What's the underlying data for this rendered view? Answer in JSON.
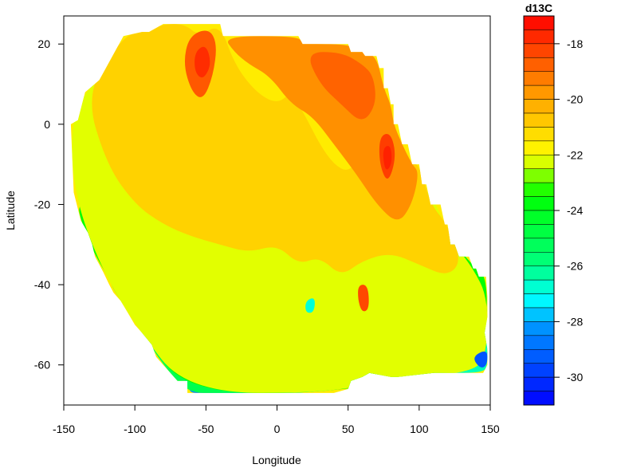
{
  "chart_data": {
    "type": "heatmap",
    "title": "",
    "xlabel": "Longitude",
    "ylabel": "Latitude",
    "xlim": [
      -150,
      150
    ],
    "ylim": [
      -70,
      27
    ],
    "x_ticks": [
      -150,
      -100,
      -50,
      0,
      50,
      100,
      150
    ],
    "y_ticks": [
      20,
      0,
      -20,
      -40,
      -60
    ],
    "grid": false,
    "colorbar": {
      "title": "d13C",
      "range": [
        -31,
        -17
      ],
      "ticks": [
        -18,
        -20,
        -22,
        -24,
        -26,
        -28,
        -30
      ],
      "low_color": "#0000ff",
      "high_color": "#ff0000"
    },
    "field_outline": [
      [
        -65,
        25
      ],
      [
        -40,
        25
      ],
      [
        -38,
        22
      ],
      [
        15,
        22
      ],
      [
        18,
        20
      ],
      [
        50,
        20
      ],
      [
        52,
        18
      ],
      [
        60,
        18
      ],
      [
        62,
        17
      ],
      [
        70,
        17
      ],
      [
        72,
        14
      ],
      [
        75,
        14
      ],
      [
        75,
        9
      ],
      [
        78,
        9
      ],
      [
        80,
        5
      ],
      [
        82,
        5
      ],
      [
        82,
        0
      ],
      [
        85,
        0
      ],
      [
        88,
        -5
      ],
      [
        92,
        -5
      ],
      [
        95,
        -10
      ],
      [
        100,
        -10
      ],
      [
        102,
        -15
      ],
      [
        105,
        -15
      ],
      [
        108,
        -20
      ],
      [
        115,
        -20
      ],
      [
        118,
        -25
      ],
      [
        120,
        -25
      ],
      [
        122,
        -30
      ],
      [
        125,
        -30
      ],
      [
        128,
        -33
      ],
      [
        135,
        -33
      ],
      [
        138,
        -36
      ],
      [
        140,
        -36
      ],
      [
        142,
        -38
      ],
      [
        147,
        -38
      ],
      [
        148,
        -43
      ],
      [
        148,
        -48
      ],
      [
        146,
        -52
      ],
      [
        148,
        -56
      ],
      [
        148,
        -60
      ],
      [
        145,
        -62
      ],
      [
        140,
        -62
      ],
      [
        110,
        -62
      ],
      [
        85,
        -63
      ],
      [
        80,
        -63
      ],
      [
        65,
        -62
      ],
      [
        60,
        -63
      ],
      [
        52,
        -64
      ],
      [
        50,
        -66
      ],
      [
        40,
        -67
      ],
      [
        15,
        -67
      ],
      [
        -15,
        -67
      ],
      [
        -40,
        -67
      ],
      [
        -63,
        -67
      ],
      [
        -63,
        -64
      ],
      [
        -70,
        -64
      ],
      [
        -75,
        -62
      ],
      [
        -80,
        -60
      ],
      [
        -85,
        -58
      ],
      [
        -88,
        -55
      ],
      [
        -95,
        -52
      ],
      [
        -100,
        -50
      ],
      [
        -105,
        -47
      ],
      [
        -110,
        -44
      ],
      [
        -115,
        -42
      ],
      [
        -118,
        -40
      ],
      [
        -122,
        -37
      ],
      [
        -125,
        -35
      ],
      [
        -128,
        -33
      ],
      [
        -130,
        -30
      ],
      [
        -133,
        -27
      ],
      [
        -138,
        -24
      ],
      [
        -143,
        -17
      ],
      [
        -145,
        0
      ],
      [
        -140,
        1
      ],
      [
        -135,
        8
      ],
      [
        -125,
        11
      ],
      [
        -108,
        22
      ],
      [
        -95,
        23
      ],
      [
        -90,
        23
      ],
      [
        -80,
        25
      ],
      [
        -65,
        25
      ]
    ],
    "bands": [
      {
        "level": -30.5,
        "points": [
          [
            -45,
            -64
          ],
          [
            -35,
            -63
          ],
          [
            0,
            -60
          ],
          [
            20,
            -62
          ],
          [
            45,
            -64
          ],
          [
            55,
            -66
          ],
          [
            -15,
            -67
          ],
          [
            -48,
            -66
          ]
        ]
      },
      {
        "level": -28.5,
        "points": [
          [
            -60,
            -63
          ],
          [
            -45,
            -60
          ],
          [
            -20,
            -58
          ],
          [
            0,
            -55
          ],
          [
            20,
            -60
          ],
          [
            40,
            -60
          ],
          [
            60,
            -62
          ],
          [
            110,
            -62
          ],
          [
            140,
            -61
          ],
          [
            148,
            -58
          ],
          [
            148,
            -56
          ],
          [
            130,
            -54
          ],
          [
            100,
            -56
          ],
          [
            75,
            -60
          ],
          [
            50,
            -62
          ],
          [
            20,
            -66
          ],
          [
            -15,
            -67
          ],
          [
            -50,
            -67
          ],
          [
            -63,
            -67
          ]
        ]
      },
      {
        "level": -26.5,
        "points": [
          [
            -80,
            -58
          ],
          [
            -75,
            -55
          ],
          [
            -60,
            -50
          ],
          [
            -45,
            -52
          ],
          [
            -30,
            -55
          ],
          [
            -15,
            -52
          ],
          [
            0,
            -48
          ],
          [
            15,
            -50
          ],
          [
            30,
            -48
          ],
          [
            50,
            -53
          ],
          [
            70,
            -52
          ],
          [
            90,
            -55
          ],
          [
            115,
            -56
          ],
          [
            135,
            -52
          ],
          [
            146,
            -48
          ],
          [
            148,
            -56
          ],
          [
            148,
            -60
          ],
          [
            145,
            -62
          ],
          [
            110,
            -62
          ],
          [
            85,
            -63
          ],
          [
            65,
            -62
          ],
          [
            52,
            -64
          ],
          [
            50,
            -66
          ],
          [
            15,
            -67
          ],
          [
            -15,
            -67
          ],
          [
            -63,
            -67
          ],
          [
            -63,
            -64
          ],
          [
            -75,
            -62
          ]
        ]
      },
      {
        "level": -25.0,
        "points": [
          [
            -120,
            -38
          ],
          [
            -105,
            -36
          ],
          [
            -95,
            -38
          ],
          [
            -85,
            -45
          ],
          [
            -70,
            -46
          ],
          [
            -60,
            -44
          ],
          [
            -45,
            -46
          ],
          [
            -30,
            -48
          ],
          [
            -15,
            -46
          ],
          [
            0,
            -42
          ],
          [
            15,
            -44
          ],
          [
            25,
            -42
          ],
          [
            35,
            -45
          ],
          [
            50,
            -46
          ],
          [
            65,
            -46
          ],
          [
            80,
            -45
          ],
          [
            95,
            -48
          ],
          [
            110,
            -52
          ],
          [
            130,
            -48
          ],
          [
            142,
            -42
          ],
          [
            147,
            -43
          ],
          [
            148,
            -48
          ],
          [
            146,
            -52
          ],
          [
            148,
            -56
          ],
          [
            140,
            -60
          ],
          [
            110,
            -62
          ],
          [
            65,
            -62
          ],
          [
            40,
            -67
          ],
          [
            -40,
            -67
          ],
          [
            -63,
            -67
          ],
          [
            -80,
            -60
          ],
          [
            -95,
            -52
          ],
          [
            -110,
            -44
          ]
        ]
      },
      {
        "level": -23.5,
        "points": [
          [
            -140,
            -20
          ],
          [
            -128,
            -18
          ],
          [
            -118,
            -22
          ],
          [
            -105,
            -30
          ],
          [
            -90,
            -32
          ],
          [
            -75,
            -38
          ],
          [
            -65,
            -34
          ],
          [
            -55,
            -38
          ],
          [
            -40,
            -40
          ],
          [
            -25,
            -38
          ],
          [
            -10,
            -35
          ],
          [
            10,
            -36
          ],
          [
            20,
            -30
          ],
          [
            30,
            -32
          ],
          [
            40,
            -25
          ],
          [
            55,
            -20
          ],
          [
            70,
            -28
          ],
          [
            90,
            -30
          ],
          [
            110,
            -25
          ],
          [
            120,
            -28
          ],
          [
            130,
            -32
          ],
          [
            140,
            -36
          ],
          [
            147,
            -38
          ],
          [
            148,
            -48
          ],
          [
            140,
            -60
          ],
          [
            110,
            -62
          ],
          [
            40,
            -67
          ],
          [
            -63,
            -67
          ],
          [
            -95,
            -52
          ],
          [
            -128,
            -33
          ],
          [
            -138,
            -24
          ]
        ]
      },
      {
        "level": -22.2,
        "points": [
          [
            -145,
            0
          ],
          [
            -135,
            8
          ],
          [
            -125,
            11
          ],
          [
            -110,
            15
          ],
          [
            -95,
            5
          ],
          [
            -80,
            -2
          ],
          [
            -60,
            0
          ],
          [
            -40,
            -5
          ],
          [
            -20,
            -10
          ],
          [
            0,
            -8
          ],
          [
            20,
            -5
          ],
          [
            35,
            -12
          ],
          [
            45,
            -20
          ],
          [
            60,
            -18
          ],
          [
            75,
            -22
          ],
          [
            95,
            -20
          ],
          [
            105,
            -15
          ],
          [
            118,
            -25
          ],
          [
            125,
            -30
          ],
          [
            138,
            -36
          ],
          [
            148,
            -43
          ],
          [
            148,
            -56
          ],
          [
            140,
            -62
          ],
          [
            80,
            -63
          ],
          [
            40,
            -67
          ],
          [
            -63,
            -67
          ],
          [
            -100,
            -50
          ],
          [
            -125,
            -35
          ],
          [
            -143,
            -17
          ]
        ]
      },
      {
        "level": -21.0,
        "points": [
          [
            -108,
            22
          ],
          [
            -95,
            23
          ],
          [
            -80,
            25
          ],
          [
            -65,
            25
          ],
          [
            -55,
            22
          ],
          [
            -40,
            25
          ],
          [
            -30,
            15
          ],
          [
            -15,
            8
          ],
          [
            0,
            5
          ],
          [
            10,
            8
          ],
          [
            20,
            2
          ],
          [
            30,
            -5
          ],
          [
            40,
            -10
          ],
          [
            50,
            -12
          ],
          [
            60,
            -8
          ],
          [
            70,
            -15
          ],
          [
            85,
            -5
          ],
          [
            95,
            -10
          ],
          [
            100,
            -10
          ],
          [
            108,
            -20
          ],
          [
            120,
            -25
          ],
          [
            130,
            -34
          ],
          [
            120,
            -38
          ],
          [
            100,
            -35
          ],
          [
            80,
            -32
          ],
          [
            60,
            -34
          ],
          [
            45,
            -38
          ],
          [
            30,
            -33
          ],
          [
            15,
            -35
          ],
          [
            0,
            -30
          ],
          [
            -20,
            -32
          ],
          [
            -40,
            -30
          ],
          [
            -60,
            -28
          ],
          [
            -80,
            -25
          ],
          [
            -100,
            -20
          ],
          [
            -120,
            -10
          ],
          [
            -135,
            8
          ]
        ]
      },
      {
        "level": -19.6,
        "points": [
          [
            -38,
            22
          ],
          [
            15,
            22
          ],
          [
            18,
            20
          ],
          [
            50,
            20
          ],
          [
            60,
            18
          ],
          [
            70,
            17
          ],
          [
            75,
            9
          ],
          [
            80,
            5
          ],
          [
            82,
            0
          ],
          [
            88,
            -5
          ],
          [
            95,
            -10
          ],
          [
            100,
            -12
          ],
          [
            95,
            -20
          ],
          [
            85,
            -25
          ],
          [
            70,
            -20
          ],
          [
            55,
            -12
          ],
          [
            40,
            -5
          ],
          [
            25,
            2
          ],
          [
            10,
            5
          ],
          [
            -5,
            12
          ],
          [
            -20,
            15
          ],
          [
            -30,
            18
          ]
        ]
      },
      {
        "level": -18.8,
        "points": [
          [
            20,
            18
          ],
          [
            45,
            18
          ],
          [
            60,
            15
          ],
          [
            68,
            12
          ],
          [
            70,
            5
          ],
          [
            60,
            0
          ],
          [
            45,
            5
          ],
          [
            30,
            10
          ]
        ]
      },
      {
        "level": -18.6,
        "points": [
          [
            -62,
            22
          ],
          [
            -48,
            24
          ],
          [
            -42,
            20
          ],
          [
            -45,
            12
          ],
          [
            -52,
            6
          ],
          [
            -60,
            8
          ],
          [
            -66,
            15
          ]
        ]
      },
      {
        "level": -17.8,
        "points": [
          [
            -58,
            18
          ],
          [
            -50,
            20
          ],
          [
            -46,
            15
          ],
          [
            -52,
            11
          ],
          [
            -58,
            13
          ]
        ]
      },
      {
        "level": -18.1,
        "points": [
          [
            72,
            -3
          ],
          [
            80,
            -2
          ],
          [
            84,
            -8
          ],
          [
            78,
            -15
          ],
          [
            72,
            -10
          ]
        ]
      },
      {
        "level": -17.6,
        "points": [
          [
            74,
            -6
          ],
          [
            80,
            -5
          ],
          [
            81,
            -10
          ],
          [
            76,
            -12
          ]
        ]
      },
      {
        "level": -18.3,
        "points": [
          [
            57,
            -40
          ],
          [
            64,
            -40
          ],
          [
            65,
            -46
          ],
          [
            60,
            -47
          ],
          [
            57,
            -44
          ]
        ]
      },
      {
        "level": -26.8,
        "points": [
          [
            20,
            -44
          ],
          [
            27,
            -43
          ],
          [
            26,
            -47
          ],
          [
            20,
            -47
          ]
        ]
      },
      {
        "level": -29.4,
        "points": [
          [
            137,
            -58
          ],
          [
            148,
            -56
          ],
          [
            148,
            -60
          ],
          [
            143,
            -61
          ]
        ]
      }
    ]
  }
}
